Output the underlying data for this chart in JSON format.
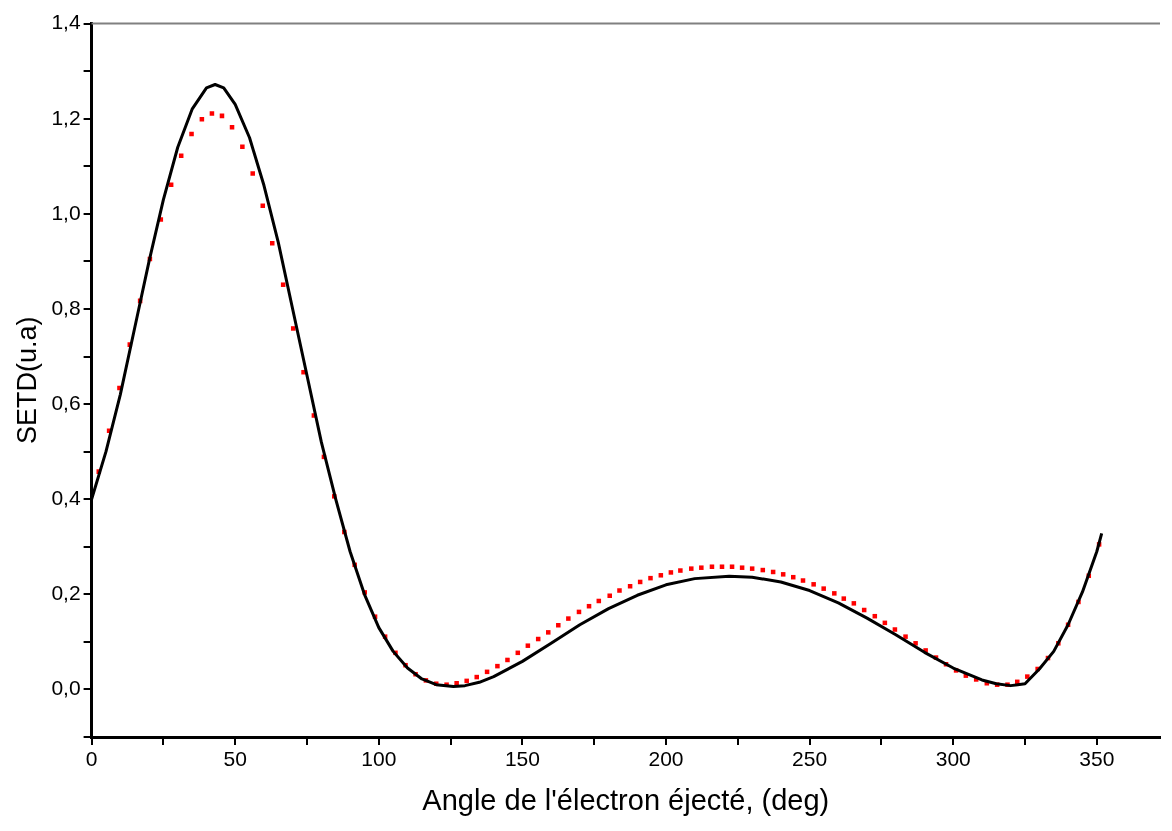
{
  "chart_data": {
    "type": "line",
    "xlabel": "Angle de l'électron éjecté, (deg)",
    "ylabel": "SETD(u.a)",
    "xlim": [
      0,
      372
    ],
    "ylim": [
      -0.1,
      1.4
    ],
    "xticks": [
      0,
      {
        "value": 25,
        "label": null
      },
      50,
      {
        "value": 75,
        "label": null
      },
      100,
      {
        "value": 125,
        "label": null
      },
      150,
      {
        "value": 175,
        "label": null
      },
      200,
      {
        "value": 225,
        "label": null
      },
      250,
      {
        "value": 275,
        "label": null
      },
      300,
      {
        "value": 325,
        "label": null
      },
      350
    ],
    "yticks": [
      {
        "value": -0.1,
        "label": null
      },
      {
        "value": 0,
        "label": "0,0"
      },
      {
        "value": 0.1,
        "label": null
      },
      {
        "value": 0.2,
        "label": "0,2"
      },
      {
        "value": 0.3,
        "label": null
      },
      {
        "value": 0.4,
        "label": "0,4"
      },
      {
        "value": 0.5,
        "label": null
      },
      {
        "value": 0.6,
        "label": "0,6"
      },
      {
        "value": 0.7,
        "label": null
      },
      {
        "value": 0.8,
        "label": "0,8"
      },
      {
        "value": 0.9,
        "label": null
      },
      {
        "value": 1.0,
        "label": "1,0"
      },
      {
        "value": 1.1,
        "label": null
      },
      {
        "value": 1.2,
        "label": "1,2"
      },
      {
        "value": 1.3,
        "label": null
      },
      {
        "value": 1.4,
        "label": "1,4"
      }
    ],
    "grid": false,
    "legend": false,
    "series": [
      {
        "type": "line",
        "color": "#000000",
        "marker": "none",
        "line_style": "solid",
        "x": [
          0,
          5,
          10,
          15,
          20,
          25,
          30,
          35,
          40,
          43,
          46,
          50,
          55,
          60,
          65,
          70,
          75,
          80,
          85,
          90,
          95,
          100,
          105,
          110,
          115,
          120,
          126,
          130,
          135,
          140,
          150,
          160,
          170,
          180,
          190,
          200,
          210,
          222,
          230,
          240,
          250,
          260,
          270,
          280,
          290,
          300,
          310,
          315,
          320,
          325,
          330,
          335,
          340,
          345,
          350,
          351.7
        ],
        "values": [
          0.4,
          0.5,
          0.62,
          0.76,
          0.9,
          1.03,
          1.14,
          1.22,
          1.265,
          1.272,
          1.265,
          1.23,
          1.16,
          1.06,
          0.94,
          0.8,
          0.66,
          0.52,
          0.4,
          0.29,
          0.2,
          0.13,
          0.08,
          0.045,
          0.022,
          0.01,
          0.006,
          0.008,
          0.015,
          0.027,
          0.059,
          0.097,
          0.136,
          0.17,
          0.198,
          0.22,
          0.233,
          0.238,
          0.236,
          0.226,
          0.208,
          0.182,
          0.15,
          0.115,
          0.078,
          0.045,
          0.02,
          0.012,
          0.008,
          0.012,
          0.043,
          0.08,
          0.136,
          0.205,
          0.29,
          0.328
        ]
      },
      {
        "type": "scatter",
        "color": "#ff0000",
        "marker": "square",
        "x": [
          2.5,
          6.1,
          9.7,
          13.3,
          16.9,
          20.3,
          24.1,
          27.7,
          31.2,
          34.8,
          38.4,
          41.9,
          45.4,
          48.9,
          52.5,
          56.1,
          59.6,
          62.9,
          66.7,
          70.2,
          73.8,
          77.4,
          80.9,
          84.5,
          88,
          91.6,
          95.1,
          98.7,
          102.2,
          105.8,
          109.3,
          112.8,
          116.4,
          120,
          123.6,
          127.1,
          130.6,
          134.1,
          137.7,
          141.3,
          144.8,
          148.4,
          151.9,
          155.5,
          159,
          162.5,
          166,
          169.7,
          173.2,
          176.6,
          180.4,
          183.8,
          187.5,
          191,
          194.6,
          198.2,
          201.7,
          205,
          208.8,
          212.3,
          216,
          219.5,
          223,
          226.5,
          230,
          233.7,
          237.3,
          240.8,
          244.3,
          247.7,
          251.4,
          254.9,
          258.6,
          261.9,
          265.4,
          269,
          272.7,
          276.2,
          279.7,
          283.4,
          286.9,
          290.4,
          294,
          297.5,
          301,
          304.4,
          308,
          311.7,
          315.3,
          318.9,
          322.3,
          325.8,
          329.4,
          333,
          336.6,
          340,
          343.6,
          347.2,
          350.8
        ],
        "values": [
          0.458,
          0.544,
          0.634,
          0.725,
          0.817,
          0.905,
          0.988,
          1.061,
          1.122,
          1.168,
          1.199,
          1.211,
          1.206,
          1.182,
          1.141,
          1.085,
          1.017,
          0.938,
          0.851,
          0.759,
          0.667,
          0.576,
          0.489,
          0.406,
          0.331,
          0.262,
          0.204,
          0.153,
          0.111,
          0.077,
          0.051,
          0.032,
          0.019,
          0.012,
          0.01,
          0.013,
          0.018,
          0.026,
          0.037,
          0.049,
          0.062,
          0.077,
          0.092,
          0.106,
          0.12,
          0.135,
          0.149,
          0.163,
          0.175,
          0.186,
          0.197,
          0.208,
          0.217,
          0.226,
          0.234,
          0.24,
          0.246,
          0.25,
          0.254,
          0.256,
          0.258,
          0.258,
          0.258,
          0.256,
          0.254,
          0.251,
          0.247,
          0.242,
          0.236,
          0.229,
          0.221,
          0.212,
          0.202,
          0.191,
          0.181,
          0.167,
          0.154,
          0.14,
          0.126,
          0.111,
          0.097,
          0.082,
          0.067,
          0.053,
          0.04,
          0.029,
          0.021,
          0.013,
          0.01,
          0.01,
          0.016,
          0.027,
          0.043,
          0.066,
          0.097,
          0.136,
          0.184,
          0.239,
          0.305
        ]
      }
    ]
  }
}
